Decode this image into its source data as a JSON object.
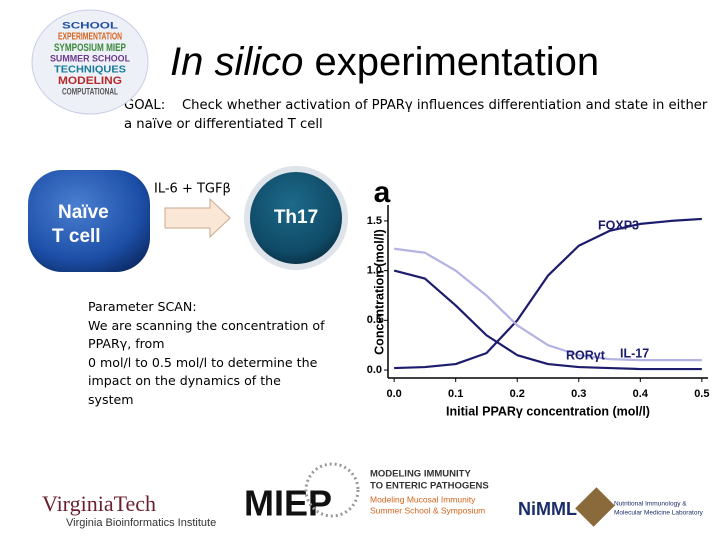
{
  "header": {
    "title_italic": "In silico",
    "title_rest": "experimentation"
  },
  "logo_words": [
    "SCHOOL",
    "EXPERIMENTATION",
    "SYMPOSIUM MIEP",
    "SUMMER SCHOOL",
    "TECHNIQUES",
    "MODELING",
    "COMPUTATIONAL"
  ],
  "goal": {
    "label": "GOAL:",
    "text": "Check whether activation of PPARγ influences differentiation and state in either a naïve or differentiated T cell"
  },
  "diagram": {
    "source_lines": [
      "Naïve",
      "T cell"
    ],
    "arrow_label": "IL-6 + TGFβ",
    "target": "Th17"
  },
  "parameter_scan": [
    "Parameter SCAN:",
    "We are scanning the concentration of",
    "PPARγ, from",
    "0 mol/l to 0.5 mol/l to determine the",
    "impact on the dynamics of the",
    "system"
  ],
  "chart_data": {
    "type": "line",
    "panel_label": "a",
    "x_label": "Initial PPARγ concentration (mol/l)",
    "y_label": "Concentration (mol/l)",
    "x": [
      0,
      0.05,
      0.1,
      0.15,
      0.2,
      0.25,
      0.3,
      0.35,
      0.4,
      0.45,
      0.5
    ],
    "series": [
      {
        "name": "FOXP3",
        "color": "#1c1c6c",
        "values": [
          0.02,
          0.03,
          0.06,
          0.17,
          0.5,
          0.95,
          1.25,
          1.4,
          1.47,
          1.5,
          1.52
        ]
      },
      {
        "name": "RORγt",
        "color": "#b3b3e3",
        "values": [
          1.22,
          1.18,
          1.0,
          0.75,
          0.45,
          0.25,
          0.15,
          0.11,
          0.1,
          0.1,
          0.1
        ]
      },
      {
        "name": "IL-17",
        "color": "#1c1c6c",
        "values": [
          1.0,
          0.92,
          0.65,
          0.35,
          0.15,
          0.06,
          0.03,
          0.02,
          0.01,
          0.01,
          0.01
        ]
      }
    ],
    "xlim": [
      -0.01,
      0.51
    ],
    "ylim": [
      -0.08,
      1.66
    ],
    "xticks": [
      {
        "value": 0,
        "label": "0.0"
      },
      0.1,
      0.2,
      0.3,
      0.4,
      0.5
    ],
    "yticks": [
      {
        "value": 0,
        "label": "0.0"
      },
      0.5,
      {
        "value": 1,
        "label": "1.0"
      },
      1.5
    ]
  },
  "footer": {
    "vt": "VirginiaTech",
    "vbi": "Virginia Bioinformatics Institute",
    "miep": "MIEP",
    "miep_title_lines": [
      "MODELING IMMUNITY",
      "TO ENTERIC PATHOGENS"
    ],
    "miep_sub_lines": [
      "Modeling Mucosal Immunity",
      "Summer School & Symposium"
    ],
    "nimml": "NiMML",
    "nimml_sub_lines": [
      "Nutritional Immunology &",
      "Molecular Medicine Laboratory"
    ]
  }
}
